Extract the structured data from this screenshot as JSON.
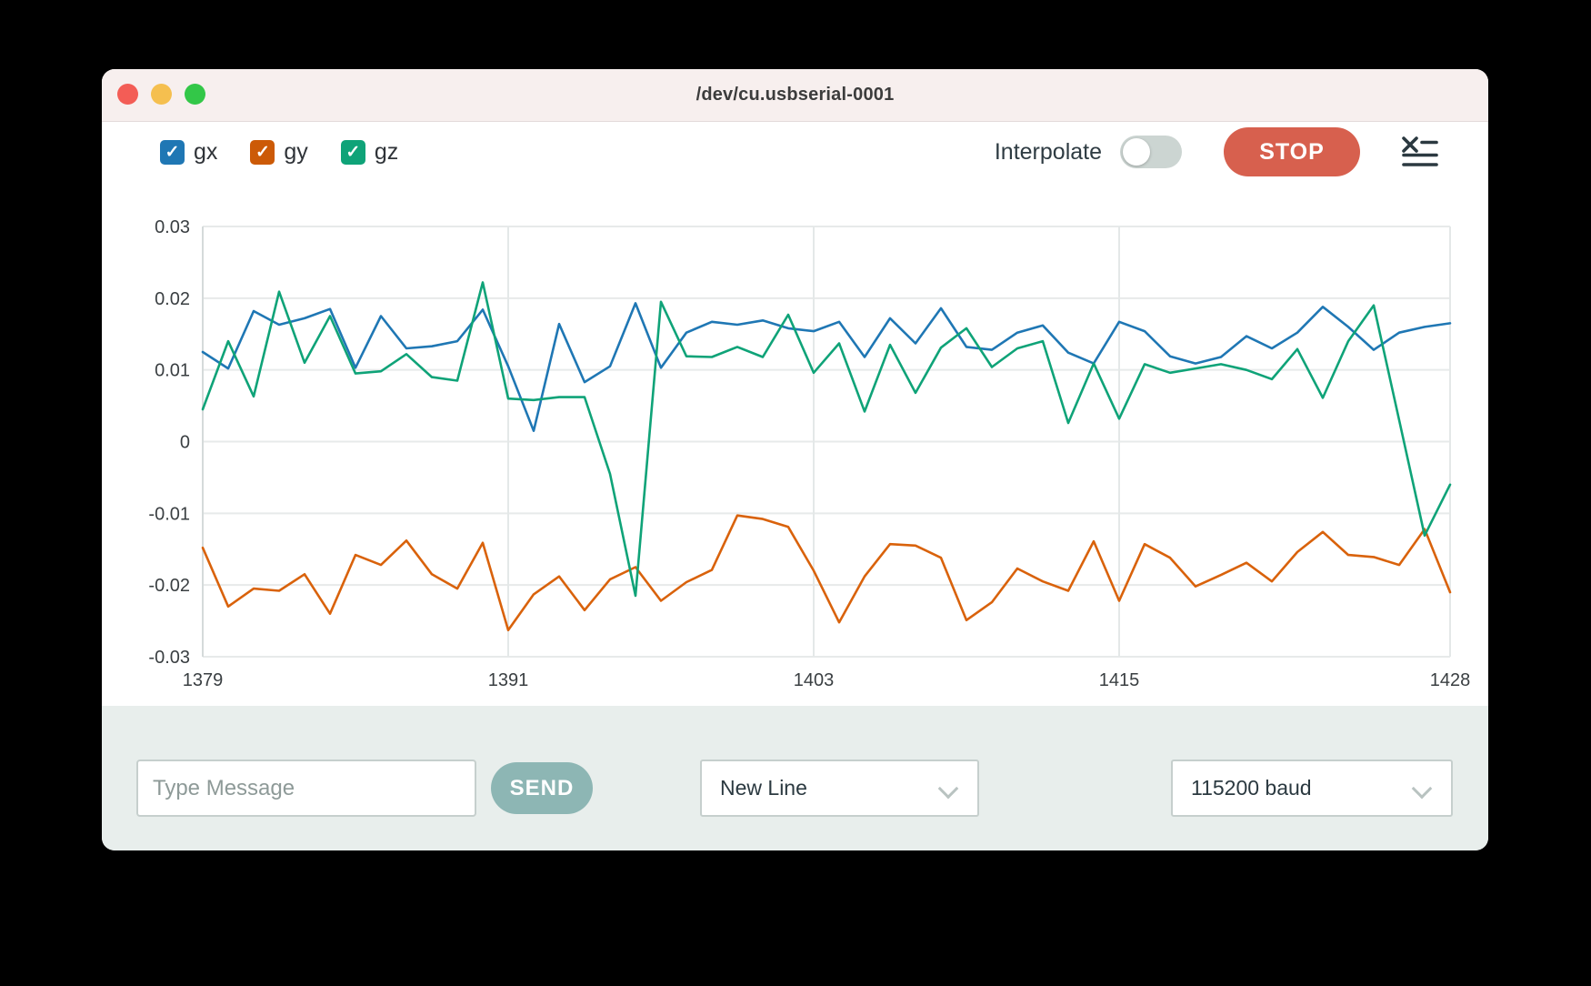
{
  "window": {
    "title": "/dev/cu.usbserial-0001",
    "traffic_lights": [
      "#f35d56",
      "#f5bf4f",
      "#33c748"
    ]
  },
  "header": {
    "series_toggles": [
      {
        "label": "gx",
        "color": "#1f77b4",
        "checked": true
      },
      {
        "label": "gy",
        "color": "#cc5a07",
        "checked": true
      },
      {
        "label": "gz",
        "color": "#0fa378",
        "checked": true
      }
    ],
    "interpolate_label": "Interpolate",
    "interpolate_on": false,
    "stop_label": "STOP",
    "stop_color": "#d7604e"
  },
  "chart_data": {
    "type": "line",
    "title": "",
    "xlabel": "",
    "ylabel": "",
    "xlim": [
      1379,
      1428
    ],
    "ylim": [
      -0.03,
      0.03
    ],
    "grid": true,
    "xticks": [
      1379,
      1391,
      1403,
      1415,
      1428
    ],
    "ytick_labels": [
      "0.03",
      "0.02",
      "0.01",
      "0",
      "-0.01",
      "-0.02",
      "-0.03"
    ],
    "yticks": [
      0.03,
      0.02,
      0.01,
      0,
      -0.01,
      -0.02,
      -0.03
    ],
    "x": [
      1379,
      1380,
      1381,
      1382,
      1383,
      1384,
      1385,
      1386,
      1387,
      1388,
      1389,
      1390,
      1391,
      1392,
      1393,
      1394,
      1395,
      1396,
      1397,
      1398,
      1399,
      1400,
      1401,
      1402,
      1403,
      1404,
      1405,
      1406,
      1407,
      1408,
      1409,
      1410,
      1411,
      1412,
      1413,
      1414,
      1415,
      1416,
      1417,
      1418,
      1419,
      1420,
      1421,
      1422,
      1423,
      1424,
      1425,
      1426,
      1427,
      1428
    ],
    "series": [
      {
        "name": "gx",
        "color": "#1f77b4",
        "values": [
          0.0125,
          0.0102,
          0.0182,
          0.0163,
          0.0172,
          0.0185,
          0.0103,
          0.0175,
          0.013,
          0.0133,
          0.014,
          0.0184,
          0.0105,
          0.0015,
          0.0164,
          0.0083,
          0.0105,
          0.0193,
          0.0103,
          0.0152,
          0.0167,
          0.0163,
          0.0169,
          0.0158,
          0.0154,
          0.0167,
          0.0118,
          0.0172,
          0.0137,
          0.0186,
          0.0132,
          0.0128,
          0.0152,
          0.0162,
          0.0124,
          0.0109,
          0.0167,
          0.0154,
          0.0119,
          0.0109,
          0.0118,
          0.0147,
          0.013,
          0.0152,
          0.0188,
          0.016,
          0.0128,
          0.0152,
          0.016,
          0.0165
        ]
      },
      {
        "name": "gy",
        "color": "#d9620b",
        "values": [
          -0.0148,
          -0.023,
          -0.0205,
          -0.0208,
          -0.0185,
          -0.024,
          -0.0158,
          -0.0172,
          -0.0138,
          -0.0185,
          -0.0205,
          -0.0141,
          -0.0263,
          -0.0213,
          -0.0188,
          -0.0235,
          -0.0192,
          -0.0175,
          -0.0222,
          -0.0196,
          -0.0179,
          -0.0103,
          -0.0108,
          -0.0119,
          -0.018,
          -0.0252,
          -0.0188,
          -0.0143,
          -0.0145,
          -0.0162,
          -0.0249,
          -0.0224,
          -0.0177,
          -0.0195,
          -0.0208,
          -0.0139,
          -0.0222,
          -0.0143,
          -0.0162,
          -0.0202,
          -0.0186,
          -0.0169,
          -0.0195,
          -0.0154,
          -0.0126,
          -0.0158,
          -0.0161,
          -0.0172,
          -0.0122,
          -0.021
        ]
      },
      {
        "name": "gz",
        "color": "#0fa378",
        "values": [
          0.0045,
          0.014,
          0.0063,
          0.0209,
          0.011,
          0.0175,
          0.0095,
          0.0098,
          0.0122,
          0.009,
          0.0085,
          0.0222,
          0.006,
          0.0058,
          0.0062,
          0.0062,
          -0.0045,
          -0.0215,
          0.0195,
          0.0119,
          0.0118,
          0.0132,
          0.0118,
          0.0177,
          0.0096,
          0.0137,
          0.0042,
          0.0135,
          0.0068,
          0.0131,
          0.0158,
          0.0104,
          0.013,
          0.014,
          0.0026,
          0.0109,
          0.0032,
          0.0108,
          0.0096,
          0.0102,
          0.0108,
          0.01,
          0.0087,
          0.0129,
          0.0061,
          0.014,
          0.019,
          0.003,
          -0.0131,
          -0.006
        ]
      }
    ],
    "legend_position": "top-left-checkboxes"
  },
  "footer": {
    "message_placeholder": "Type Message",
    "send_label": "SEND",
    "send_color": "#8db6b4",
    "line_ending_value": "New Line",
    "baud_value": "115200 baud"
  }
}
